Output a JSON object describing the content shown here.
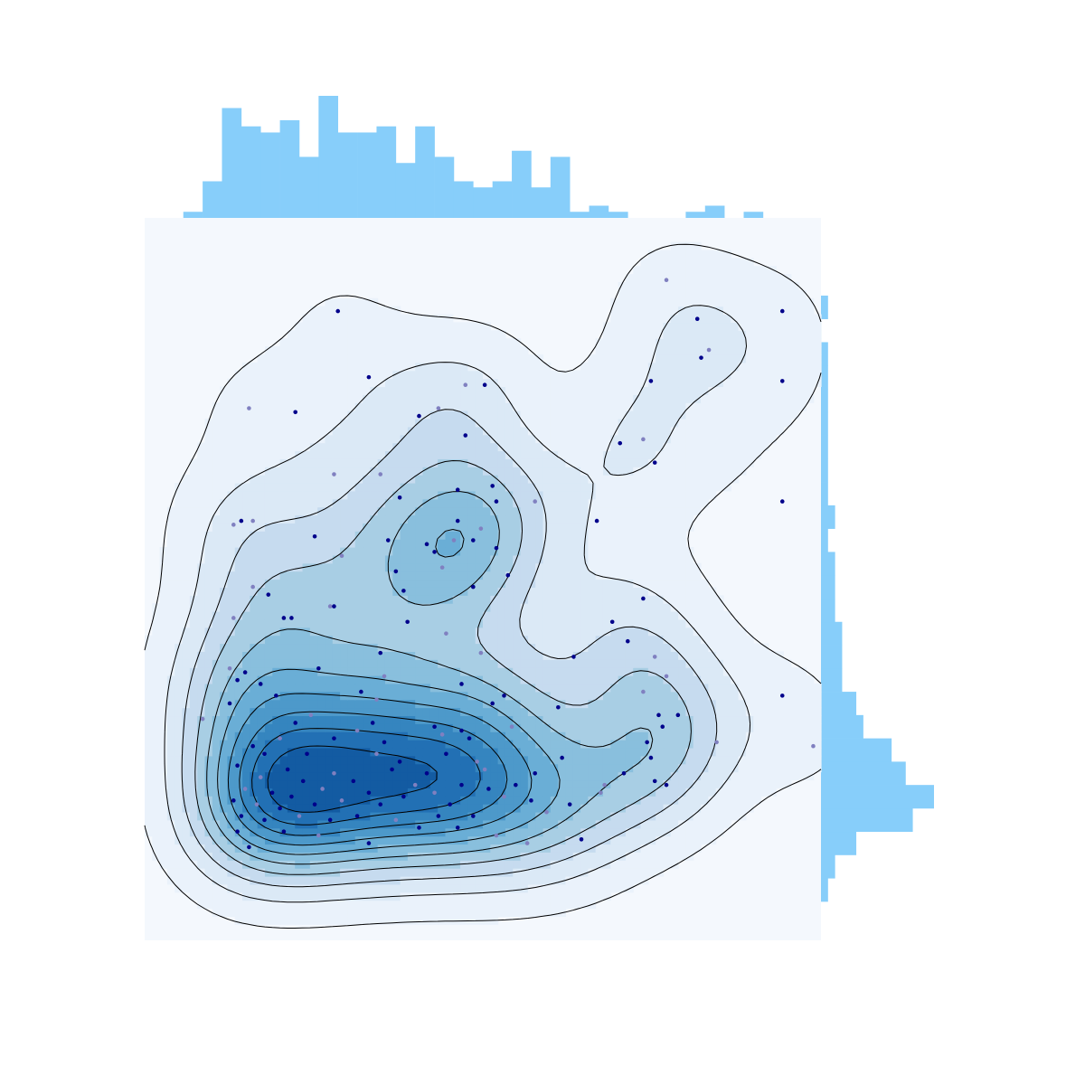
{
  "chart_data": {
    "type": "scatter",
    "subtype": "joint-kde",
    "title": "",
    "xlabel": "",
    "ylabel": "",
    "xlim": [
      -0.5,
      17
    ],
    "ylim": [
      -2,
      16.6
    ],
    "axes_visible": false,
    "grid": false,
    "colors": {
      "marginal_fill": "#87cefa",
      "plot_background": "#f4f8fd",
      "point_dark": "#00008b",
      "point_light": "#8080c0",
      "contour_line": "#000000",
      "kde_fills": [
        "#eaf2fb",
        "#dbe9f6",
        "#c6dbef",
        "#a8cee4",
        "#89bfdd",
        "#6aaed6",
        "#4d99ca",
        "#3585bf",
        "#2270b4",
        "#135ba2"
      ]
    },
    "kde_peaks": [
      {
        "x": 2.3,
        "y": 1.7
      },
      {
        "x": 4.7,
        "y": 1.6
      },
      {
        "x": 7.3,
        "y": 3.0
      },
      {
        "x": 9.4,
        "y": 1.6
      }
    ],
    "x_marginal": {
      "bin_start": 0.5,
      "bin_width": 0.5,
      "counts": [
        1,
        6,
        18,
        15,
        14,
        16,
        10,
        20,
        14,
        14,
        15,
        9,
        15,
        10,
        6,
        5,
        6,
        11,
        5,
        10,
        1,
        2,
        1,
        0,
        0,
        0,
        1,
        2,
        0,
        1,
        0
      ]
    },
    "y_marginal": {
      "bin_start": -1.0,
      "bin_width": 0.6,
      "counts": [
        1,
        2,
        5,
        13,
        16,
        12,
        10,
        6,
        5,
        3,
        3,
        3,
        2,
        2,
        2,
        1,
        2,
        1,
        1,
        1,
        1,
        1,
        1,
        1,
        0,
        1,
        0
      ]
    },
    "points": [
      [
        4.5,
        14.2
      ],
      [
        13,
        15
      ],
      [
        16,
        14.2
      ],
      [
        13.8,
        14
      ],
      [
        14.1,
        13.2
      ],
      [
        13.9,
        13
      ],
      [
        5.3,
        12.5
      ],
      [
        7.8,
        12.3
      ],
      [
        12.6,
        12.4
      ],
      [
        16,
        12.4
      ],
      [
        2.2,
        11.7
      ],
      [
        3.4,
        11.6
      ],
      [
        6.6,
        11.5
      ],
      [
        7.1,
        11.7
      ],
      [
        8.3,
        12.3
      ],
      [
        7.8,
        11
      ],
      [
        12.4,
        10.9
      ],
      [
        11.8,
        10.8
      ],
      [
        12.7,
        10.3
      ],
      [
        5.6,
        10
      ],
      [
        7.6,
        9.6
      ],
      [
        8.5,
        9.7
      ],
      [
        4.4,
        10
      ],
      [
        6.1,
        9.4
      ],
      [
        8.6,
        9.3
      ],
      [
        9.6,
        9.3
      ],
      [
        11.2,
        8.8
      ],
      [
        16,
        9.3
      ],
      [
        2.3,
        8.8
      ],
      [
        3.9,
        8.4
      ],
      [
        5.8,
        8.3
      ],
      [
        1.8,
        8.7
      ],
      [
        2.0,
        8.8
      ],
      [
        7.6,
        8.8
      ],
      [
        8.2,
        8.6
      ],
      [
        8.0,
        8.3
      ],
      [
        6.8,
        8.2
      ],
      [
        7.5,
        8.3
      ],
      [
        8.6,
        8.1
      ],
      [
        7.0,
        8.0
      ],
      [
        4.6,
        7.9
      ],
      [
        6.0,
        7.5
      ],
      [
        6.2,
        7.0
      ],
      [
        7.2,
        7.6
      ],
      [
        8.0,
        7.1
      ],
      [
        8.9,
        7.4
      ],
      [
        2.3,
        7.1
      ],
      [
        2.7,
        6.9
      ],
      [
        3.1,
        6.3
      ],
      [
        4.3,
        6.6
      ],
      [
        4.4,
        6.6
      ],
      [
        12.4,
        6.8
      ],
      [
        1.8,
        6.3
      ],
      [
        3.3,
        6.3
      ],
      [
        6.3,
        6.2
      ],
      [
        7.3,
        5.9
      ],
      [
        11.6,
        6.2
      ],
      [
        12.0,
        5.7
      ],
      [
        8.2,
        5.4
      ],
      [
        10.6,
        5.3
      ],
      [
        4.0,
        5.0
      ],
      [
        1.7,
        5.0
      ],
      [
        2.1,
        4.9
      ],
      [
        5.6,
        5.4
      ],
      [
        12.7,
        5.3
      ],
      [
        1.9,
        4.7
      ],
      [
        2.5,
        4.6
      ],
      [
        5.7,
        4.8
      ],
      [
        7.7,
        4.6
      ],
      [
        8.8,
        4.3
      ],
      [
        13.0,
        4.8
      ],
      [
        2.9,
        4.3
      ],
      [
        5.1,
        4.4
      ],
      [
        12.4,
        4.4
      ],
      [
        16,
        4.3
      ],
      [
        1.7,
        4.1
      ],
      [
        5.5,
        4.2
      ],
      [
        8.5,
        4.1
      ],
      [
        10.2,
        4.0
      ],
      [
        3.8,
        3.8
      ],
      [
        12.8,
        3.8
      ],
      [
        13.3,
        3.8
      ],
      [
        1.0,
        3.7
      ],
      [
        3.4,
        3.6
      ],
      [
        5.4,
        3.6
      ],
      [
        5.0,
        3.4
      ],
      [
        7.0,
        3.5
      ],
      [
        7.7,
        3.4
      ],
      [
        9.0,
        3.5
      ],
      [
        12.9,
        3.5
      ],
      [
        2.3,
        3.0
      ],
      [
        3.0,
        3.2
      ],
      [
        4.4,
        3.2
      ],
      [
        5.7,
        3.1
      ],
      [
        7.2,
        3.3
      ],
      [
        7.9,
        3.2
      ],
      [
        12.5,
        3.1
      ],
      [
        14.3,
        3.1
      ],
      [
        2.6,
        2.8
      ],
      [
        3.7,
        2.8
      ],
      [
        5.5,
        2.8
      ],
      [
        6.1,
        2.6
      ],
      [
        7.3,
        2.8
      ],
      [
        8.1,
        2.6
      ],
      [
        10.3,
        2.7
      ],
      [
        12.6,
        2.7
      ],
      [
        16.8,
        3.0
      ],
      [
        1.9,
        2.5
      ],
      [
        3.2,
        2.4
      ],
      [
        4.4,
        2.3
      ],
      [
        5.9,
        2.4
      ],
      [
        6.8,
        2.3
      ],
      [
        8.3,
        2.4
      ],
      [
        9.6,
        2.3
      ],
      [
        11.9,
        2.3
      ],
      [
        2.5,
        2.2
      ],
      [
        3.6,
        2.1
      ],
      [
        4.9,
        2.1
      ],
      [
        6.5,
        2.0
      ],
      [
        7.7,
        2.0
      ],
      [
        9.1,
        2.0
      ],
      [
        11.4,
        2.0
      ],
      [
        12.7,
        2.1
      ],
      [
        13.0,
        2.0
      ],
      [
        2.1,
        1.9
      ],
      [
        2.8,
        1.8
      ],
      [
        3.3,
        1.7
      ],
      [
        4.1,
        1.9
      ],
      [
        5.3,
        1.8
      ],
      [
        6.2,
        1.7
      ],
      [
        7.0,
        1.8
      ],
      [
        8.4,
        1.9
      ],
      [
        1.8,
        1.6
      ],
      [
        2.4,
        1.5
      ],
      [
        3.0,
        1.4
      ],
      [
        3.9,
        1.5
      ],
      [
        4.6,
        1.6
      ],
      [
        5.6,
        1.5
      ],
      [
        7.4,
        1.5
      ],
      [
        8.8,
        1.7
      ],
      [
        9.5,
        1.6
      ],
      [
        10.5,
        1.5
      ],
      [
        11.3,
        1.8
      ],
      [
        2.0,
        1.2
      ],
      [
        2.6,
        1.1
      ],
      [
        3.5,
        1.2
      ],
      [
        4.3,
        1.1
      ],
      [
        5.0,
        1.2
      ],
      [
        6.0,
        1.1
      ],
      [
        7.1,
        1.2
      ],
      [
        8.0,
        1.2
      ],
      [
        9.9,
        1.3
      ],
      [
        1.9,
        0.8
      ],
      [
        3.1,
        0.8
      ],
      [
        4.0,
        0.7
      ],
      [
        6.6,
        0.9
      ],
      [
        7.6,
        0.9
      ],
      [
        8.6,
        0.7
      ],
      [
        2.2,
        0.4
      ],
      [
        5.3,
        0.5
      ],
      [
        9.4,
        0.5
      ],
      [
        10.8,
        0.6
      ]
    ]
  }
}
